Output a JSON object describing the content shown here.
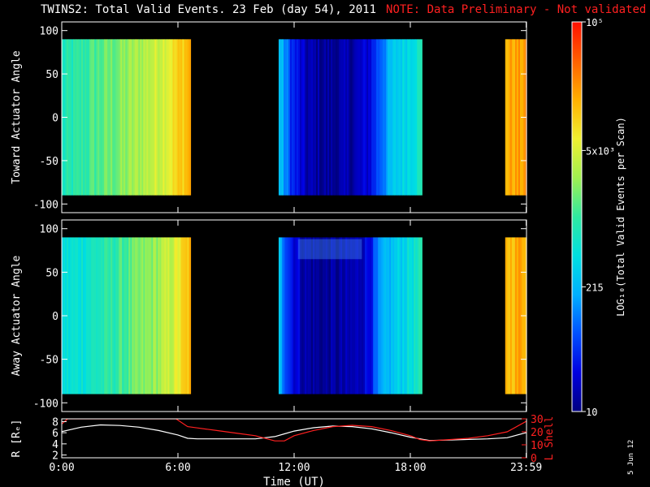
{
  "header": {
    "title": "TWINS2: Total Valid Events. 23 Feb (day  54), 2011",
    "note": "NOTE: Data Preliminary - Not validated"
  },
  "footer": {
    "datestamp": "5 Jun 12"
  },
  "colors": {
    "background": "#000000",
    "axes": "#ffffff",
    "note": "#ff2020",
    "l_shell": "#ff2020",
    "radius": "#ffffff"
  },
  "chart_data": [
    {
      "type": "heatmap",
      "ylabel": "Toward Actuator Angle",
      "ylim": [
        -110,
        110
      ],
      "yticks": [
        100,
        50,
        0,
        -50,
        -100
      ],
      "xlim_hours": [
        0,
        24
      ],
      "y_band": [
        -90,
        90
      ],
      "data_blocks": [
        {
          "start_hours": 0.0,
          "end_hours": 6.65,
          "profile": [
            0.45,
            0.48,
            0.52,
            0.55,
            0.58,
            0.62,
            0.66,
            0.72,
            0.8
          ]
        },
        {
          "start_hours": 11.2,
          "end_hours": 18.6,
          "profile": [
            0.35,
            0.15,
            0.05,
            0.03,
            0.02,
            0.03,
            0.05,
            0.1,
            0.25,
            0.35,
            0.4,
            0.45
          ]
        },
        {
          "start_hours": 22.9,
          "end_hours": 24.0,
          "profile": [
            0.8,
            0.82
          ]
        }
      ]
    },
    {
      "type": "heatmap",
      "ylabel": "Away Actuator Angle",
      "ylim": [
        -110,
        110
      ],
      "yticks": [
        100,
        50,
        0,
        -50,
        -100
      ],
      "xlim_hours": [
        0,
        24
      ],
      "y_band": [
        -90,
        90
      ],
      "data_blocks": [
        {
          "start_hours": 0.0,
          "end_hours": 6.65,
          "profile": [
            0.4,
            0.42,
            0.45,
            0.48,
            0.52,
            0.56,
            0.6,
            0.66,
            0.78
          ]
        },
        {
          "start_hours": 11.2,
          "end_hours": 18.6,
          "profile": [
            0.32,
            0.12,
            0.04,
            0.02,
            0.02,
            0.03,
            0.05,
            0.12,
            0.28,
            0.35,
            0.4,
            0.45
          ]
        },
        {
          "start_hours": 22.9,
          "end_hours": 24.0,
          "profile": [
            0.78,
            0.82
          ]
        }
      ]
    },
    {
      "type": "line",
      "xlabel": "Time (UT)",
      "xticks": [
        "0:00",
        "6:00",
        "12:00",
        "18:00",
        "23:59"
      ],
      "xtick_hours": [
        0,
        6,
        12,
        18,
        23.983
      ],
      "ylabel_left": "R [Rₑ]",
      "ylim_left": [
        1.5,
        8.5
      ],
      "yticks_left": [
        8,
        6,
        4,
        2
      ],
      "ylabel_right": "L Shell",
      "ylim_right": [
        0,
        30
      ],
      "yticks_right": [
        30,
        20,
        10,
        0
      ],
      "series": [
        {
          "name": "R [Rₑ]",
          "x_hours": [
            0,
            1,
            2,
            3,
            4,
            5,
            6,
            6.5,
            7,
            8,
            9,
            10,
            11,
            11.5,
            12,
            13,
            14,
            15,
            16,
            17,
            18,
            18.5,
            19,
            20,
            21,
            22,
            23,
            23.98
          ],
          "values": [
            6.2,
            7.0,
            7.4,
            7.3,
            7.0,
            6.4,
            5.6,
            5.0,
            4.9,
            4.9,
            4.9,
            4.9,
            5.3,
            5.8,
            6.3,
            6.9,
            7.2,
            7.1,
            6.7,
            6.0,
            5.2,
            4.9,
            4.6,
            4.7,
            4.8,
            4.9,
            5.1,
            6.0
          ]
        },
        {
          "name": "L Shell",
          "x_hours": [
            0,
            0.3,
            5.9,
            6.5,
            7,
            8,
            9,
            10,
            11,
            11.5,
            12,
            13,
            14,
            15,
            16,
            17,
            18,
            18.5,
            19,
            20,
            21,
            22,
            23,
            23.98
          ],
          "values": [
            26,
            30,
            30,
            24,
            23,
            21,
            19,
            17,
            13,
            13,
            17,
            21,
            24,
            25,
            24,
            21,
            17,
            14,
            13,
            14,
            15,
            17,
            20,
            28
          ]
        }
      ]
    }
  ],
  "colorbar": {
    "label": "LOG₁₀(Total Valid Events per Scan)",
    "ticks": [
      {
        "label": "10",
        "frac": 0.0
      },
      {
        "label": "215",
        "frac": 0.32
      },
      {
        "label": "5x10³",
        "frac": 0.67
      },
      {
        "label": "10⁵",
        "frac": 1.0
      }
    ],
    "stops": [
      "#000080",
      "#0000e0",
      "#0050ff",
      "#00b0ff",
      "#00e0e0",
      "#30e8a0",
      "#a0f050",
      "#f0f030",
      "#ffb000",
      "#ff6000",
      "#ff1000"
    ]
  }
}
